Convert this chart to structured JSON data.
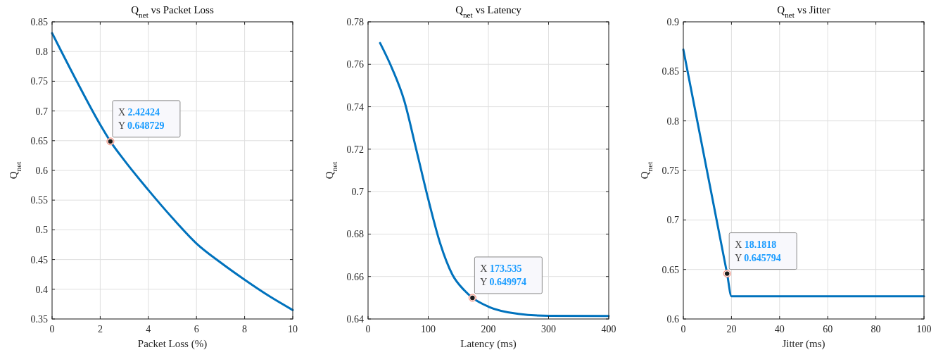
{
  "chart_data": [
    {
      "type": "line",
      "title": "Q$_{net}$ vs Packet Loss",
      "xlabel": "Packet Loss (%)",
      "ylabel": "Q$_{net}$",
      "x": [
        0,
        1,
        2,
        2.42424,
        3,
        4,
        5,
        6,
        7,
        8,
        9,
        10
      ],
      "series": [
        {
          "color": "#0072bd",
          "values": [
            0.831,
            0.752,
            0.677,
            0.648729,
            0.617,
            0.567,
            0.52,
            0.477,
            0.445,
            0.416,
            0.389,
            0.365
          ]
        }
      ],
      "xlim": [
        0,
        10
      ],
      "xticks": [
        0,
        2,
        4,
        6,
        8,
        10
      ],
      "ylim": [
        0.35,
        0.85
      ],
      "yticks": [
        0.35,
        0.4,
        0.45,
        0.5,
        0.55,
        0.6,
        0.65,
        0.7,
        0.75,
        0.8,
        0.85
      ],
      "grid": true,
      "marker": "none",
      "line_style": "solid",
      "annotations": [
        {
          "text": "X 2.42424\nY 0.648729",
          "x": 2.42424,
          "y": 0.648729
        }
      ]
    },
    {
      "type": "line",
      "title": "Q$_{net}$ vs Latency",
      "xlabel": "Latency (ms)",
      "ylabel": "Q$_{net}$",
      "x": [
        20,
        40,
        60,
        80,
        100,
        120,
        140,
        160,
        173.535,
        200,
        250,
        300,
        400
      ],
      "series": [
        {
          "color": "#0072bd",
          "values": [
            0.77,
            0.758,
            0.743,
            0.72,
            0.6965,
            0.6755,
            0.661,
            0.6535,
            0.649974,
            0.6458,
            0.6424,
            0.6415,
            0.6414
          ]
        }
      ],
      "xlim": [
        0,
        400
      ],
      "xticks": [
        0,
        100,
        200,
        300,
        400
      ],
      "ylim": [
        0.64,
        0.78
      ],
      "yticks": [
        0.64,
        0.66,
        0.68,
        0.7,
        0.72,
        0.74,
        0.76,
        0.78
      ],
      "grid": true,
      "marker": "none",
      "line_style": "solid",
      "annotations": [
        {
          "text": "X 173.535\nY 0.649974",
          "x": 173.535,
          "y": 0.649974
        }
      ]
    },
    {
      "type": "line",
      "title": "Q$_{net}$ vs Jitter",
      "xlabel": "Jitter (ms)",
      "ylabel": "Q$_{net}$",
      "x": [
        0,
        18.1818,
        20,
        100
      ],
      "series": [
        {
          "color": "#0072bd",
          "values": [
            0.872,
            0.645794,
            0.623,
            0.623
          ]
        }
      ],
      "xlim": [
        0,
        100
      ],
      "xticks": [
        0,
        20,
        40,
        60,
        80,
        100
      ],
      "ylim": [
        0.6,
        0.9
      ],
      "yticks": [
        0.6,
        0.65,
        0.7,
        0.75,
        0.8,
        0.85,
        0.9
      ],
      "grid": true,
      "marker": "none",
      "line_style": "solid",
      "annotations": [
        {
          "text": "X 18.1818\nY 0.645794",
          "x": 18.1818,
          "y": 0.645794
        }
      ]
    }
  ]
}
